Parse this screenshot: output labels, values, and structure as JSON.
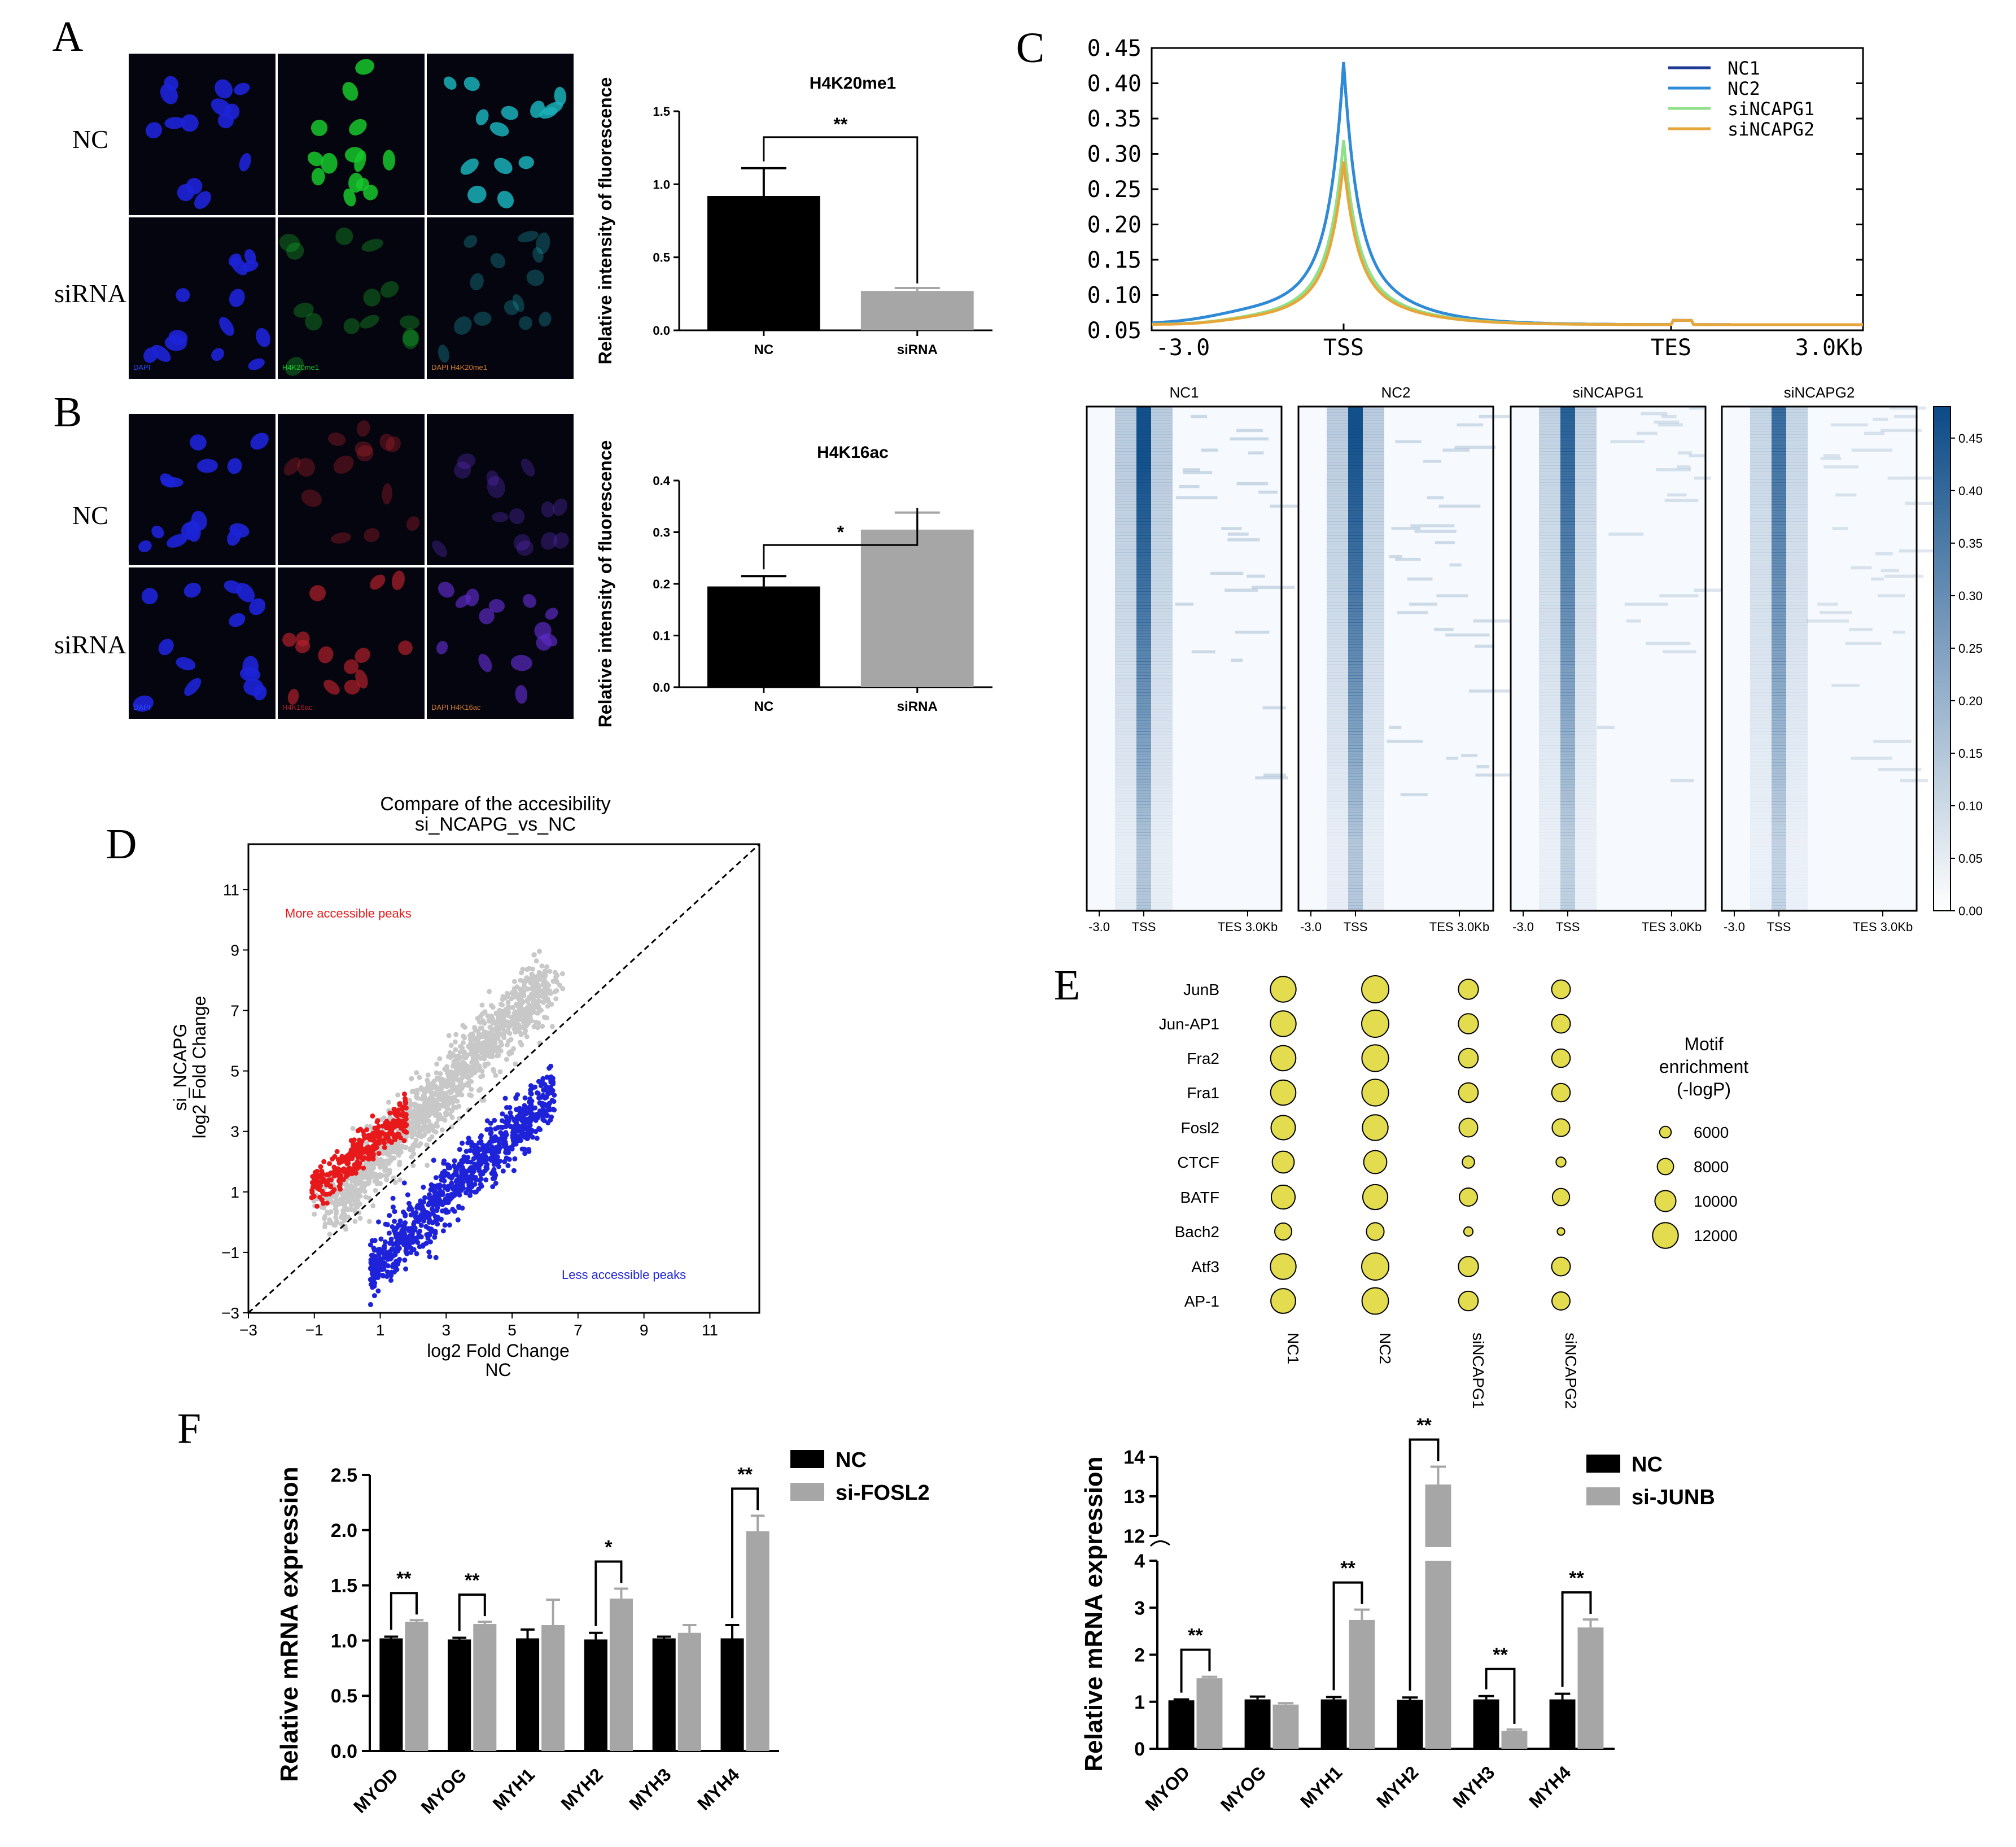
{
  "panel_letters": [
    "A",
    "B",
    "C",
    "D",
    "E",
    "F"
  ],
  "colors": {
    "black_bar": "#000000",
    "gray_bar": "#a6a6a6",
    "nc1": "#1f3a93",
    "nc2": "#2e8bd8",
    "sincapg1": "#8fe08a",
    "sincapg2": "#e6a63a",
    "more_peaks": "#e8191b",
    "less_peaks": "#1e22d8",
    "neutral_peaks": "#c8c8c8",
    "motif_fill": "#e3dc4f",
    "heatmap_dark": "#0b4a86"
  },
  "microscopy": {
    "A": {
      "rows": [
        "NC",
        "siRNA"
      ],
      "channels": [
        "DAPI",
        "H4K20me1",
        "DAPI H4K20me1"
      ],
      "stain_color": "#17c72b"
    },
    "B": {
      "rows": [
        "NC",
        "siRNA"
      ],
      "channels": [
        "DAPI",
        "H4K16ac",
        "DAPI H4K16ac"
      ],
      "stain_color": "#b0202a"
    }
  },
  "chart_data": [
    {
      "id": "A-bar",
      "type": "bar",
      "title": "H4K20me1",
      "ylabel": "Relative intensity of fluorescence",
      "categories": [
        "NC",
        "siRNA"
      ],
      "values": [
        0.92,
        0.27
      ],
      "errors": [
        0.19,
        0.02
      ],
      "ylim": [
        0,
        1.5
      ],
      "yticks": [
        "0.0",
        "0.5",
        "1.0",
        "1.5"
      ],
      "significance": [
        {
          "pair": [
            0,
            1
          ],
          "label": "**"
        }
      ]
    },
    {
      "id": "B-bar",
      "type": "bar",
      "title": "H4K16ac",
      "ylabel": "Relative intensity of fluorescence",
      "categories": [
        "NC",
        "siRNA"
      ],
      "values": [
        0.195,
        0.305
      ],
      "errors": [
        0.02,
        0.033
      ],
      "ylim": [
        0,
        0.4
      ],
      "yticks": [
        "0.0",
        "0.1",
        "0.2",
        "0.3",
        "0.4"
      ],
      "significance": [
        {
          "pair": [
            0,
            1
          ],
          "label": "*"
        }
      ]
    },
    {
      "id": "C-profile",
      "type": "line",
      "xlabel_ticks": [
        "-3.0",
        "TSS",
        "TES",
        "3.0Kb"
      ],
      "yticks": [
        "0.05",
        "0.10",
        "0.15",
        "0.20",
        "0.25",
        "0.30",
        "0.35",
        "0.40",
        "0.45"
      ],
      "ylim": [
        0.05,
        0.45
      ],
      "legend_position": "top-right",
      "series": [
        {
          "name": "NC1",
          "peak": 0.43
        },
        {
          "name": "NC2",
          "peak": 0.43
        },
        {
          "name": "siNCAPG1",
          "peak": 0.32
        },
        {
          "name": "siNCAPG2",
          "peak": 0.29
        }
      ]
    },
    {
      "id": "C-heatmap",
      "type": "heatmap",
      "columns": [
        "NC1",
        "NC2",
        "siNCAPG1",
        "siNCAPG2"
      ],
      "x_ticks": [
        "-3.0",
        "TSS",
        "TES 3.0Kb"
      ],
      "colorbar_ticks": [
        "0.00",
        "0.05",
        "0.10",
        "0.15",
        "0.20",
        "0.25",
        "0.30",
        "0.35",
        "0.40",
        "0.45"
      ],
      "colorbar_range": [
        0,
        0.48
      ],
      "column_intensity": [
        1.0,
        0.95,
        0.8,
        0.72
      ]
    },
    {
      "id": "D-scatter",
      "type": "scatter",
      "title_lines": [
        "Compare of the accesibility",
        "si_NCAPG_vs_NC"
      ],
      "xlabel_lines": [
        "log2 Fold Change",
        "NC"
      ],
      "ylabel_lines": [
        "si_NCAPG",
        "log2 Fold Change"
      ],
      "xticks": [
        -3,
        -1,
        1,
        3,
        5,
        7,
        9,
        11
      ],
      "yticks": [
        -3,
        -1,
        1,
        3,
        5,
        7,
        9,
        11
      ],
      "xlim": [
        -3,
        12.5
      ],
      "ylim": [
        -3,
        12.5
      ],
      "annotations": [
        "More accessible peaks",
        "Less accessible peaks"
      ],
      "diagonal": [
        [
          -3,
          -3
        ],
        [
          12.5,
          12.5
        ]
      ]
    },
    {
      "id": "E-dotplot",
      "type": "scatter",
      "motifs": [
        "JunB",
        "Jun-AP1",
        "Fra2",
        "Fra1",
        "Fosl2",
        "CTCF",
        "BATF",
        "Bach2",
        "Atf3",
        "AP-1"
      ],
      "samples": [
        "NC1",
        "NC2",
        "siNCAPG1",
        "siNCAPG2"
      ],
      "values": [
        [
          12000,
          12600,
          9600,
          9000
        ],
        [
          12000,
          12600,
          9600,
          9000
        ],
        [
          11800,
          12400,
          9400,
          8900
        ],
        [
          11800,
          12400,
          9400,
          8900
        ],
        [
          11400,
          12000,
          9000,
          8600
        ],
        [
          10400,
          10900,
          6300,
          5300
        ],
        [
          11200,
          11700,
          8800,
          8400
        ],
        [
          8300,
          8600,
          5000,
          4300
        ],
        [
          12000,
          12600,
          9600,
          9000
        ],
        [
          11600,
          12300,
          9400,
          8800
        ]
      ],
      "legend_title": [
        "Motif",
        "enrichment",
        "(-logP)"
      ],
      "legend_sizes": [
        6000,
        8000,
        10000,
        12000
      ],
      "legend_labels": [
        "6000",
        "8000",
        "10000",
        "12000"
      ]
    },
    {
      "id": "F-left",
      "type": "bar",
      "ylabel": "Relative mRNA expression",
      "categories": [
        "MYOD",
        "MYOG",
        "MYH1",
        "MYH2",
        "MYH3",
        "MYH4"
      ],
      "series": [
        {
          "name": "NC",
          "values": [
            1.02,
            1.01,
            1.02,
            1.01,
            1.02,
            1.02
          ],
          "errors": [
            0.015,
            0.015,
            0.08,
            0.06,
            0.015,
            0.12
          ]
        },
        {
          "name": "si-FOSL2",
          "values": [
            1.17,
            1.15,
            1.14,
            1.38,
            1.07,
            1.99
          ],
          "errors": [
            0.015,
            0.02,
            0.23,
            0.09,
            0.07,
            0.14
          ]
        }
      ],
      "ylim": [
        0,
        2.5
      ],
      "yticks": [
        "0.0",
        "0.5",
        "1.0",
        "1.5",
        "2.0",
        "2.5"
      ],
      "significance": [
        {
          "category": 0,
          "label": "**"
        },
        {
          "category": 1,
          "label": "**"
        },
        {
          "category": 3,
          "label": "*"
        },
        {
          "category": 5,
          "label": "**"
        }
      ]
    },
    {
      "id": "F-right",
      "type": "bar",
      "ylabel": "Relative mRNA expression",
      "categories": [
        "MYOD",
        "MYOG",
        "MYH1",
        "MYH2",
        "MYH3",
        "MYH4"
      ],
      "series": [
        {
          "name": "NC",
          "values": [
            1.03,
            1.05,
            1.05,
            1.04,
            1.05,
            1.05
          ],
          "errors": [
            0.02,
            0.06,
            0.05,
            0.05,
            0.07,
            0.12
          ]
        },
        {
          "name": "si-JUNB",
          "values": [
            1.5,
            0.94,
            2.74,
            13.3,
            0.38,
            2.58
          ],
          "errors": [
            0.03,
            0.03,
            0.22,
            0.45,
            0.03,
            0.17
          ]
        }
      ],
      "ylim_lower": [
        0,
        4
      ],
      "ylim_upper": [
        12,
        14
      ],
      "yticks": [
        "0",
        "1",
        "2",
        "3",
        "4",
        "12",
        "13",
        "14"
      ],
      "significance": [
        {
          "category": 0,
          "label": "**"
        },
        {
          "category": 2,
          "label": "**"
        },
        {
          "category": 3,
          "label": "**"
        },
        {
          "category": 4,
          "label": "**"
        },
        {
          "category": 5,
          "label": "**"
        }
      ]
    }
  ]
}
